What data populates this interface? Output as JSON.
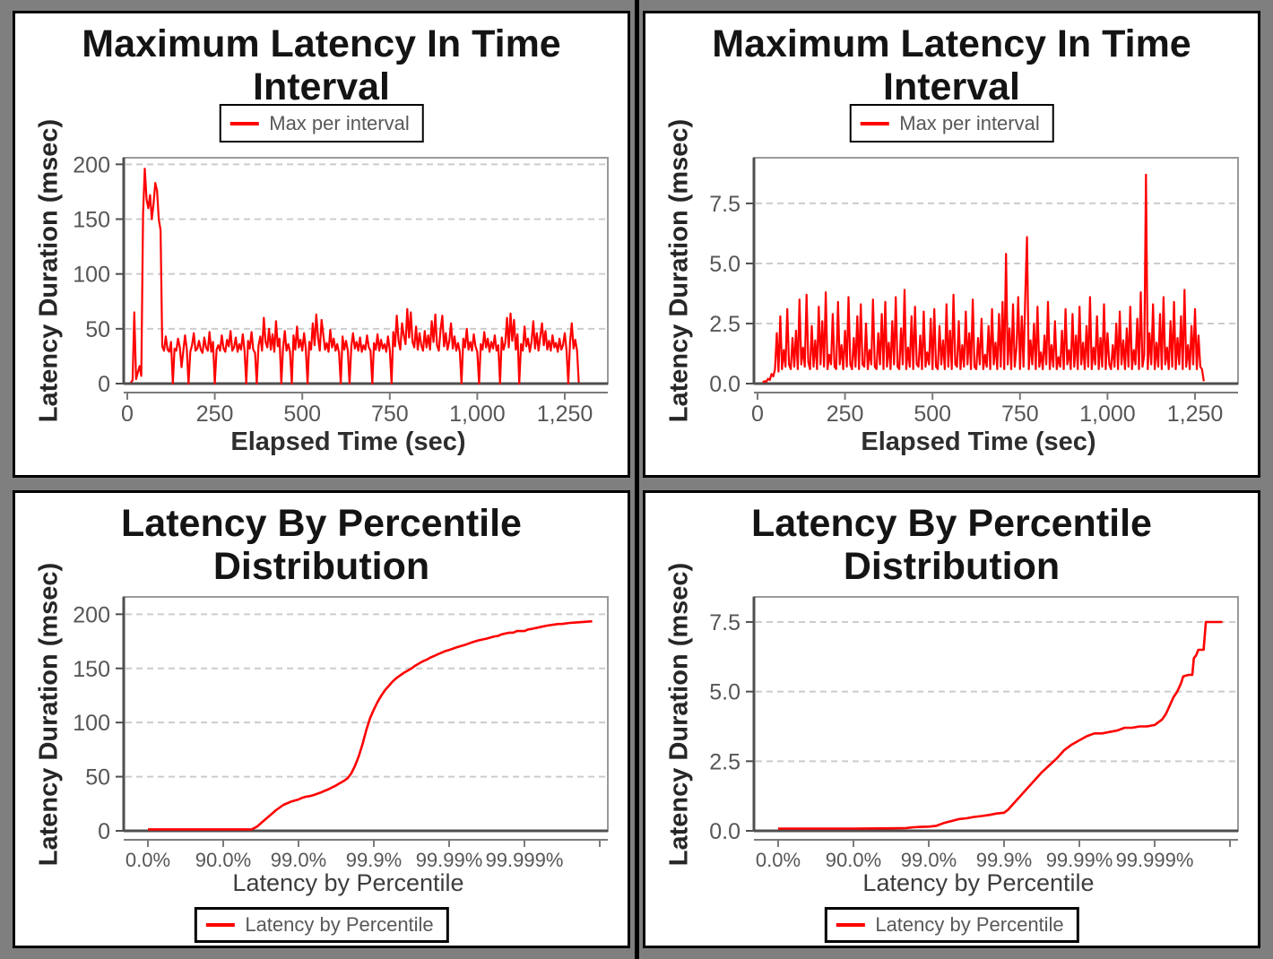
{
  "page": {
    "background": "#7f7f7f",
    "divider": "#000000",
    "panel_background": "#ffffff",
    "panel_border": "#000000"
  },
  "colors": {
    "series": "#fe0000",
    "grid": "#cccccc",
    "axis": "#4f4f4f",
    "plot_border": "#9a9a9a",
    "band": "#7b7b7b",
    "tick_text": "#565656",
    "title_text": "#141414",
    "legend_text": "#58585a"
  },
  "chart_data": [
    {
      "type": "line",
      "title": "Maximum Latency In Time Interval",
      "title_lines": [
        "Maximum Latency In Time",
        "Interval"
      ],
      "legend": {
        "label": "Max per interval",
        "position": "top"
      },
      "x_axis": {
        "label": "Elapsed Time (sec)",
        "tick_labels": [
          "0",
          "250",
          "500",
          "750",
          "1,000",
          "1,250"
        ],
        "tick_values": [
          0,
          250,
          500,
          750,
          1000,
          1250
        ],
        "range": [
          -10,
          1373
        ]
      },
      "y_axis": {
        "label": "Latency Duration (msec)",
        "tick_labels": [
          "0",
          "50",
          "100",
          "150",
          "200"
        ],
        "tick_values": [
          0,
          50,
          100,
          150,
          200
        ],
        "range": [
          0,
          206
        ]
      },
      "grid": "horizontal-dashed",
      "series": {
        "name": "Max per interval",
        "t0": 10,
        "dt": 5,
        "values": [
          1,
          3,
          65,
          4,
          10,
          16,
          7,
          155,
          196,
          168,
          160,
          172,
          150,
          164,
          183,
          176,
          150,
          140,
          34,
          30,
          43,
          31,
          29,
          38,
          0,
          32,
          30,
          41,
          33,
          15,
          30,
          44,
          31,
          0,
          29,
          35,
          46,
          30,
          32,
          39,
          31,
          28,
          42,
          33,
          30,
          47,
          29,
          38,
          0,
          31,
          35,
          30,
          44,
          32,
          29,
          40,
          34,
          48,
          30,
          33,
          42,
          29,
          36,
          31,
          45,
          30,
          0,
          39,
          32,
          47,
          31,
          28,
          0,
          35,
          43,
          30,
          60,
          38,
          33,
          50,
          31,
          45,
          29,
          57,
          34,
          41,
          0,
          32,
          48,
          30,
          36,
          29,
          0,
          44,
          31,
          52,
          33,
          40,
          30,
          46,
          32,
          0,
          38,
          31,
          55,
          35,
          63,
          42,
          30,
          58,
          45,
          31,
          37,
          29,
          49,
          33,
          41,
          30,
          36,
          28,
          0,
          43,
          31,
          39,
          30,
          0,
          34,
          46,
          32,
          38,
          30,
          42,
          29,
          35,
          31,
          44,
          33,
          30,
          0,
          37,
          31,
          45,
          30,
          40,
          32,
          36,
          29,
          43,
          31,
          0,
          47,
          34,
          62,
          39,
          31,
          55,
          44,
          36,
          68,
          42,
          65,
          38,
          33,
          52,
          31,
          46,
          35,
          30,
          48,
          33,
          44,
          31,
          57,
          38,
          63,
          35,
          30,
          49,
          62,
          34,
          46,
          31,
          39,
          55,
          32,
          43,
          30,
          37,
          29,
          0,
          41,
          33,
          50,
          31,
          38,
          30,
          45,
          34,
          29,
          0,
          36,
          31,
          47,
          33,
          41,
          29,
          38,
          32,
          44,
          30,
          35,
          0,
          42,
          31,
          37,
          60,
          33,
          64,
          39,
          58,
          31,
          45,
          0,
          36,
          30,
          52,
          34,
          41,
          29,
          38,
          57,
          32,
          46,
          30,
          43,
          55,
          35,
          48,
          31,
          39,
          30,
          44,
          33,
          37,
          29,
          41,
          31,
          35,
          46,
          30,
          0,
          38,
          55,
          32,
          40,
          30,
          1
        ]
      }
    },
    {
      "type": "line",
      "title": "Maximum Latency In Time Interval",
      "title_lines": [
        "Maximum Latency In Time",
        "Interval"
      ],
      "legend": {
        "label": "Max per interval",
        "position": "top"
      },
      "x_axis": {
        "label": "Elapsed Time (sec)",
        "tick_labels": [
          "0",
          "250",
          "500",
          "750",
          "1,000",
          "1,250"
        ],
        "tick_values": [
          0,
          250,
          500,
          750,
          1000,
          1250
        ],
        "range": [
          -10,
          1373
        ]
      },
      "y_axis": {
        "label": "Latency Duration (msec)",
        "tick_labels": [
          "0.0",
          "2.5",
          "5.0",
          "7.5"
        ],
        "tick_values": [
          0,
          2.5,
          5,
          7.5
        ],
        "range": [
          0,
          9.4
        ]
      },
      "grid": "horizontal-dashed",
      "series": {
        "name": "Max per interval",
        "t0": 15,
        "dt": 5,
        "values": [
          0.05,
          0.1,
          0.08,
          0.2,
          0.15,
          0.4,
          0.3,
          0.6,
          2.1,
          0.5,
          2.8,
          0.6,
          1.4,
          0.7,
          3.1,
          0.8,
          0.6,
          1.9,
          0.7,
          2.2,
          0.6,
          3.5,
          0.8,
          1.5,
          0.7,
          3.7,
          0.9,
          0.6,
          2.4,
          0.7,
          1.8,
          0.6,
          3.2,
          0.8,
          2.6,
          0.7,
          3.8,
          0.6,
          1.2,
          0.8,
          2.9,
          0.7,
          0.6,
          3.4,
          0.8,
          1.6,
          0.6,
          2.2,
          0.7,
          3.6,
          0.8,
          0.6,
          1.9,
          0.7,
          2.8,
          0.6,
          3.3,
          0.8,
          0.7,
          2.5,
          0.6,
          1.4,
          0.8,
          3.5,
          0.7,
          0.6,
          2.1,
          0.8,
          2.9,
          0.6,
          3.4,
          0.7,
          1.7,
          0.6,
          2.6,
          0.8,
          3.6,
          0.7,
          0.6,
          2.3,
          0.8,
          3.9,
          0.6,
          1.5,
          0.7,
          2.8,
          0.6,
          3.2,
          0.8,
          0.7,
          2.0,
          0.6,
          3.0,
          0.7,
          1.3,
          0.8,
          2.7,
          0.6,
          3.1,
          0.7,
          0.6,
          2.4,
          0.8,
          1.8,
          0.6,
          3.3,
          0.7,
          2.2,
          0.6,
          3.7,
          0.8,
          0.7,
          2.6,
          0.6,
          1.6,
          0.7,
          3.0,
          0.8,
          2.1,
          0.6,
          3.5,
          0.7,
          0.6,
          1.9,
          0.8,
          2.7,
          0.6,
          1.2,
          0.7,
          2.4,
          0.6,
          3.1,
          0.8,
          1.7,
          0.6,
          2.9,
          0.7,
          3.4,
          0.6,
          5.4,
          0.8,
          2.3,
          0.6,
          3.3,
          0.7,
          1.5,
          3.6,
          0.6,
          2.8,
          0.7,
          3.7,
          6.1,
          0.6,
          1.8,
          0.8,
          2.5,
          0.6,
          3.2,
          0.7,
          1.3,
          0.6,
          2.0,
          0.8,
          3.4,
          0.6,
          1.6,
          0.7,
          2.6,
          0.6,
          1.1,
          0.7,
          2.2,
          0.6,
          3.1,
          0.8,
          1.4,
          0.6,
          2.9,
          0.7,
          2.0,
          0.6,
          3.2,
          0.8,
          1.7,
          0.6,
          2.4,
          0.7,
          3.6,
          0.6,
          1.5,
          0.8,
          2.8,
          0.6,
          1.9,
          0.7,
          3.3,
          0.6,
          2.1,
          0.8,
          0.6,
          1.6,
          0.7,
          2.5,
          0.6,
          3.0,
          0.8,
          1.8,
          0.6,
          2.3,
          0.7,
          3.2,
          0.6,
          1.4,
          0.8,
          2.7,
          0.6,
          3.8,
          0.7,
          1.2,
          8.7,
          0.6,
          2.1,
          0.8,
          3.3,
          0.6,
          1.7,
          0.7,
          2.9,
          0.6,
          3.6,
          0.8,
          1.5,
          0.6,
          2.6,
          0.7,
          3.4,
          0.6,
          1.9,
          0.8,
          2.8,
          0.6,
          3.9,
          0.7,
          1.6,
          0.6,
          2.4,
          0.8,
          3.1,
          0.6,
          2.0,
          0.7,
          0.6,
          0.1
        ]
      }
    },
    {
      "type": "line",
      "title": "Latency By Percentile Distribution",
      "title_lines": [
        "Latency By Percentile",
        "Distribution"
      ],
      "legend": {
        "label": "Latency by Percentile",
        "position": "bottom"
      },
      "x_axis": {
        "label": "Latency by Percentile",
        "tick_labels": [
          "0.0%",
          "90.0%",
          "99.0%",
          "99.9%",
          "99.99%",
          "99.999%"
        ],
        "scale": "log-percentile"
      },
      "y_axis": {
        "label": "Latency Duration (msec)",
        "tick_labels": [
          "0",
          "50",
          "100",
          "150",
          "200"
        ],
        "tick_values": [
          0,
          50,
          100,
          150,
          200
        ],
        "range": [
          0,
          216
        ]
      },
      "grid": "horizontal-dashed",
      "series": {
        "name": "Latency by Percentile",
        "points": [
          [
            0,
            1.3
          ],
          [
            0.5,
            1.3
          ],
          [
            1,
            1.3
          ],
          [
            1.2,
            1.3
          ],
          [
            1.38,
            1.3
          ],
          [
            1.45,
            4
          ],
          [
            1.55,
            10
          ],
          [
            1.65,
            16
          ],
          [
            1.7,
            19
          ],
          [
            1.8,
            24
          ],
          [
            1.9,
            27
          ],
          [
            2.0,
            29
          ],
          [
            2.05,
            30.5
          ],
          [
            2.1,
            31.5
          ],
          [
            2.15,
            32
          ],
          [
            2.2,
            33
          ],
          [
            2.3,
            35.5
          ],
          [
            2.4,
            38.5
          ],
          [
            2.5,
            42
          ],
          [
            2.55,
            44
          ],
          [
            2.6,
            46
          ],
          [
            2.65,
            48.5
          ],
          [
            2.7,
            53
          ],
          [
            2.75,
            60
          ],
          [
            2.8,
            69
          ],
          [
            2.85,
            80
          ],
          [
            2.9,
            93
          ],
          [
            2.95,
            104
          ],
          [
            3.0,
            112
          ],
          [
            3.05,
            119
          ],
          [
            3.1,
            125
          ],
          [
            3.15,
            130
          ],
          [
            3.2,
            134
          ],
          [
            3.25,
            138
          ],
          [
            3.3,
            141
          ],
          [
            3.35,
            143.5
          ],
          [
            3.4,
            146
          ],
          [
            3.45,
            148
          ],
          [
            3.5,
            150
          ],
          [
            3.55,
            152.5
          ],
          [
            3.6,
            154.5
          ],
          [
            3.65,
            156.5
          ],
          [
            3.7,
            158
          ],
          [
            3.75,
            160
          ],
          [
            3.8,
            161.5
          ],
          [
            3.85,
            163
          ],
          [
            3.9,
            164.5
          ],
          [
            3.95,
            166
          ],
          [
            4.0,
            167
          ],
          [
            4.1,
            169.5
          ],
          [
            4.2,
            171.5
          ],
          [
            4.3,
            174
          ],
          [
            4.4,
            176
          ],
          [
            4.5,
            177.5
          ],
          [
            4.6,
            179.5
          ],
          [
            4.65,
            180
          ],
          [
            4.7,
            181.5
          ],
          [
            4.8,
            183
          ],
          [
            4.85,
            183
          ],
          [
            4.9,
            184.5
          ],
          [
            5.0,
            184.5
          ],
          [
            5.05,
            186
          ],
          [
            5.1,
            186.5
          ],
          [
            5.2,
            188
          ],
          [
            5.3,
            189.5
          ],
          [
            5.4,
            190.5
          ],
          [
            5.45,
            191
          ],
          [
            5.5,
            191
          ],
          [
            5.6,
            192
          ],
          [
            5.7,
            192.5
          ],
          [
            5.8,
            193
          ],
          [
            5.9,
            193.5
          ]
        ]
      }
    },
    {
      "type": "line",
      "title": "Latency By Percentile Distribution",
      "title_lines": [
        "Latency By Percentile",
        "Distribution"
      ],
      "legend": {
        "label": "Latency by Percentile",
        "position": "bottom"
      },
      "x_axis": {
        "label": "Latency by Percentile",
        "tick_labels": [
          "0.0%",
          "90.0%",
          "99.0%",
          "99.9%",
          "99.99%",
          "99.999%"
        ],
        "scale": "log-percentile"
      },
      "y_axis": {
        "label": "Latency Duration (msec)",
        "tick_labels": [
          "0.0",
          "2.5",
          "5.0",
          "7.5"
        ],
        "tick_values": [
          0,
          2.5,
          5,
          7.5
        ],
        "range": [
          0,
          8.4
        ]
      },
      "grid": "horizontal-dashed",
      "series": {
        "name": "Latency by Percentile",
        "points": [
          [
            0,
            0.08
          ],
          [
            0.5,
            0.08
          ],
          [
            1,
            0.08
          ],
          [
            1.5,
            0.09
          ],
          [
            1.7,
            0.1
          ],
          [
            1.8,
            0.13
          ],
          [
            1.9,
            0.14
          ],
          [
            2.0,
            0.15
          ],
          [
            2.1,
            0.18
          ],
          [
            2.2,
            0.28
          ],
          [
            2.3,
            0.35
          ],
          [
            2.4,
            0.42
          ],
          [
            2.5,
            0.45
          ],
          [
            2.6,
            0.5
          ],
          [
            2.7,
            0.53
          ],
          [
            2.8,
            0.57
          ],
          [
            2.9,
            0.62
          ],
          [
            3.0,
            0.65
          ],
          [
            3.05,
            0.75
          ],
          [
            3.1,
            0.9
          ],
          [
            3.2,
            1.2
          ],
          [
            3.3,
            1.5
          ],
          [
            3.4,
            1.8
          ],
          [
            3.5,
            2.1
          ],
          [
            3.6,
            2.35
          ],
          [
            3.7,
            2.6
          ],
          [
            3.8,
            2.9
          ],
          [
            3.9,
            3.1
          ],
          [
            4.0,
            3.25
          ],
          [
            4.1,
            3.4
          ],
          [
            4.15,
            3.45
          ],
          [
            4.2,
            3.5
          ],
          [
            4.3,
            3.5
          ],
          [
            4.4,
            3.55
          ],
          [
            4.5,
            3.6
          ],
          [
            4.55,
            3.65
          ],
          [
            4.6,
            3.7
          ],
          [
            4.7,
            3.7
          ],
          [
            4.8,
            3.75
          ],
          [
            4.9,
            3.75
          ],
          [
            5.0,
            3.8
          ],
          [
            5.05,
            3.9
          ],
          [
            5.1,
            4.0
          ],
          [
            5.15,
            4.2
          ],
          [
            5.2,
            4.5
          ],
          [
            5.25,
            4.8
          ],
          [
            5.3,
            5.0
          ],
          [
            5.35,
            5.3
          ],
          [
            5.38,
            5.55
          ],
          [
            5.45,
            5.6
          ],
          [
            5.5,
            5.6
          ],
          [
            5.52,
            6.2
          ],
          [
            5.55,
            6.3
          ],
          [
            5.58,
            6.5
          ],
          [
            5.65,
            6.5
          ],
          [
            5.68,
            7.5
          ],
          [
            5.8,
            7.5
          ],
          [
            5.9,
            7.5
          ]
        ]
      }
    }
  ]
}
